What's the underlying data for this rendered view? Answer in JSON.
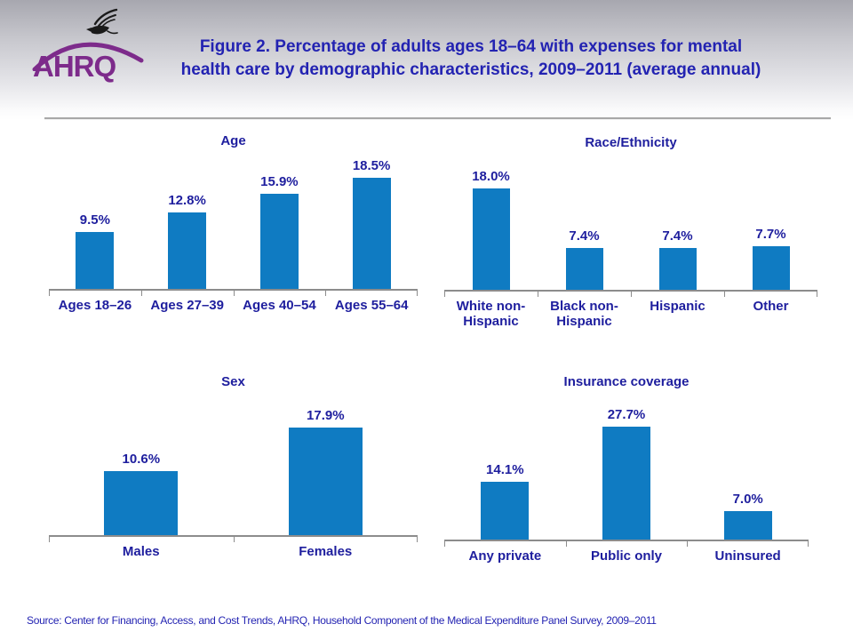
{
  "header": {
    "title_line1": "Figure 2. Percentage of adults ages 18–64 with expenses for mental",
    "title_line2": "health care by demographic characteristics, 2009–2011 (average annual)",
    "logo": {
      "org": "AHRQ",
      "eagle_icon": "hhs-eagle-icon",
      "swoosh_icon": "ahrq-swoosh-icon"
    }
  },
  "chart_data": [
    {
      "type": "bar",
      "title": "Age",
      "categories": [
        "Ages 18–26",
        "Ages 27–39",
        "Ages 40–54",
        "Ages 55–64"
      ],
      "values": [
        9.5,
        12.8,
        15.9,
        18.5
      ],
      "value_labels": [
        "9.5%",
        "12.8%",
        "15.9%",
        "18.5%"
      ],
      "unit": "%",
      "data_labels_position": "above-bars",
      "y_axis_shown": false,
      "grid": false,
      "legend": "none"
    },
    {
      "type": "bar",
      "title": "Race/Ethnicity",
      "categories": [
        "White non-Hispanic",
        "Black non-Hispanic",
        "Hispanic",
        "Other"
      ],
      "values": [
        18.0,
        7.4,
        7.4,
        7.7
      ],
      "value_labels": [
        "18.0%",
        "7.4%",
        "7.4%",
        "7.7%"
      ],
      "unit": "%",
      "data_labels_position": "above-bars",
      "y_axis_shown": false,
      "grid": false,
      "legend": "none"
    },
    {
      "type": "bar",
      "title": "Sex",
      "categories": [
        "Males",
        "Females"
      ],
      "values": [
        10.6,
        17.9
      ],
      "value_labels": [
        "10.6%",
        "17.9%"
      ],
      "unit": "%",
      "data_labels_position": "above-bars",
      "y_axis_shown": false,
      "grid": false,
      "legend": "none"
    },
    {
      "type": "bar",
      "title": "Insurance coverage",
      "categories": [
        "Any private",
        "Public only",
        "Uninsured"
      ],
      "values": [
        14.1,
        27.7,
        7.0
      ],
      "value_labels": [
        "14.1%",
        "27.7%",
        "7.0%"
      ],
      "unit": "%",
      "data_labels_position": "above-bars",
      "y_axis_shown": false,
      "grid": false,
      "legend": "none"
    }
  ],
  "footer": {
    "source": "Source: Center for Financing, Access, and Cost Trends, AHRQ, Household Component of the Medical Expenditure Panel Survey, 2009–2011"
  },
  "colors": {
    "bar": "#0f7bc2",
    "chart_text": "#1e1e9e",
    "title_text": "#2323b2",
    "axis": "#8c8c8c",
    "logo_purple": "#7d2b8b",
    "eagle_black": "#1a1a1a"
  }
}
